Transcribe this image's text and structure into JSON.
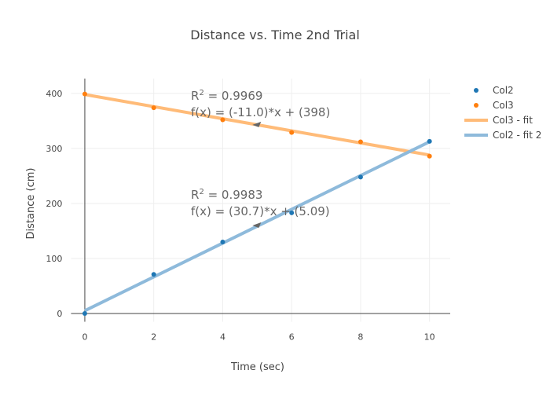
{
  "chart_data": {
    "type": "scatter",
    "title": "Distance vs. Time 2nd Trial",
    "xlabel": "Time (sec)",
    "ylabel": "Distance (cm)",
    "xlim": [
      -0.4,
      10.6
    ],
    "ylim": [
      -15,
      427
    ],
    "xticks": [
      0,
      2,
      4,
      6,
      8,
      10
    ],
    "yticks": [
      0,
      100,
      200,
      300,
      400
    ],
    "grid": true,
    "legend_placement": "top-right",
    "series": [
      {
        "name": "Col2",
        "mode": "markers",
        "color": "#1f77b4",
        "x": [
          0,
          2,
          4,
          6,
          8,
          10
        ],
        "y": [
          0,
          71,
          130,
          183,
          248,
          313
        ]
      },
      {
        "name": "Col3",
        "mode": "markers",
        "color": "#ff7f0e",
        "x": [
          0,
          2,
          4,
          6,
          8,
          10
        ],
        "y": [
          399,
          374,
          352,
          329,
          312,
          286
        ]
      },
      {
        "name": "Col3 - fit",
        "mode": "line",
        "color": "#ffbb78",
        "slope": -11.0,
        "intercept": 398,
        "x": [
          0,
          10
        ]
      },
      {
        "name": "Col2 - fit 2",
        "mode": "line",
        "color": "#8ebadb",
        "slope": 30.7,
        "intercept": 5.09,
        "x": [
          0,
          10
        ]
      }
    ],
    "annotations": [
      {
        "r2_label": "R",
        "r2_sup": "2",
        "r2_value": " = 0.9969",
        "equation": "f(x) = (-11.0)*x + (398)",
        "arrow_to": [
          5,
          343
        ]
      },
      {
        "r2_label": "R",
        "r2_sup": "2",
        "r2_value": " = 0.9983",
        "equation": "f(x) = (30.7)*x + (5.09)",
        "arrow_to": [
          5,
          160
        ]
      }
    ]
  }
}
